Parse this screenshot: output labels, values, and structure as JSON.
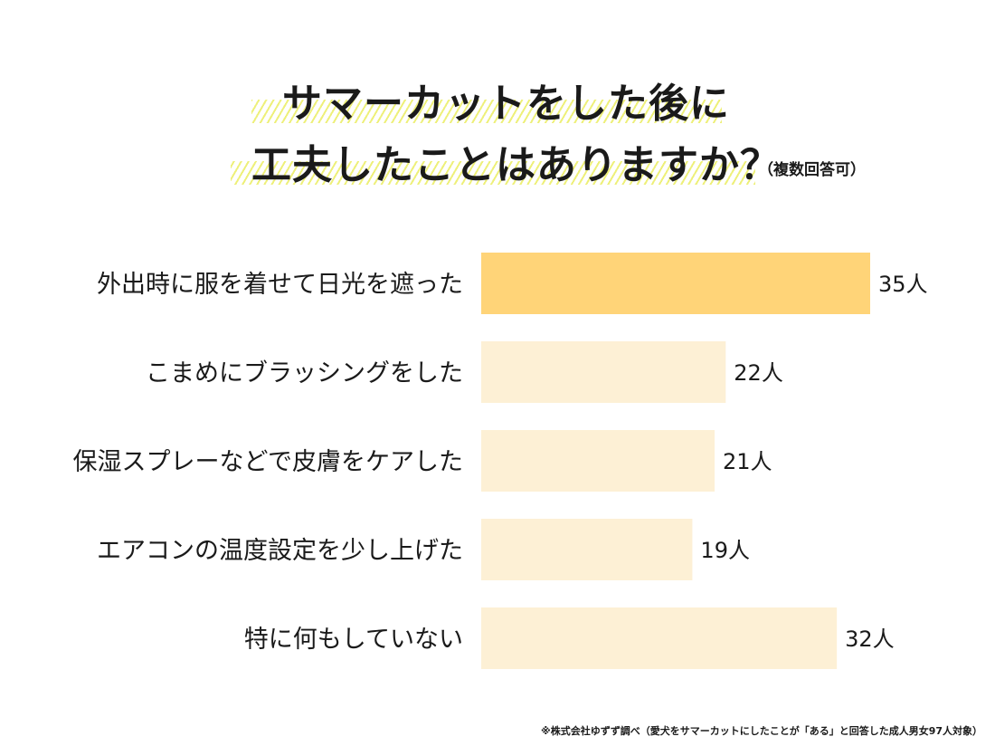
{
  "title": {
    "line1": "サマーカットをした後に",
    "line2": "工夫したことはありますか？",
    "note": "（複数回答可）"
  },
  "source": "※株式会社ゆずず調べ（愛犬をサマーカットにしたことが「ある」と回答した成人男女97人対象）",
  "colors": {
    "highlight": "#ffd478",
    "bar": "#fdf0d5",
    "hatch": "#eef07a",
    "text": "#1a1a1a"
  },
  "chart_data": {
    "type": "bar",
    "orientation": "horizontal",
    "categories": [
      "外出時に服を着せて日光を遮った",
      "こまめにブラッシングをした",
      "保湿スプレーなどで皮膚をケアした",
      "エアコンの温度設定を少し上げた",
      "特に何もしていない"
    ],
    "values": [
      35,
      22,
      21,
      19,
      32
    ],
    "value_labels": [
      "35人",
      "22人",
      "21人",
      "19人",
      "32人"
    ],
    "unit": "人",
    "highlight_index": 0,
    "xlim": [
      0,
      35
    ],
    "grid": false,
    "legend": "none"
  }
}
